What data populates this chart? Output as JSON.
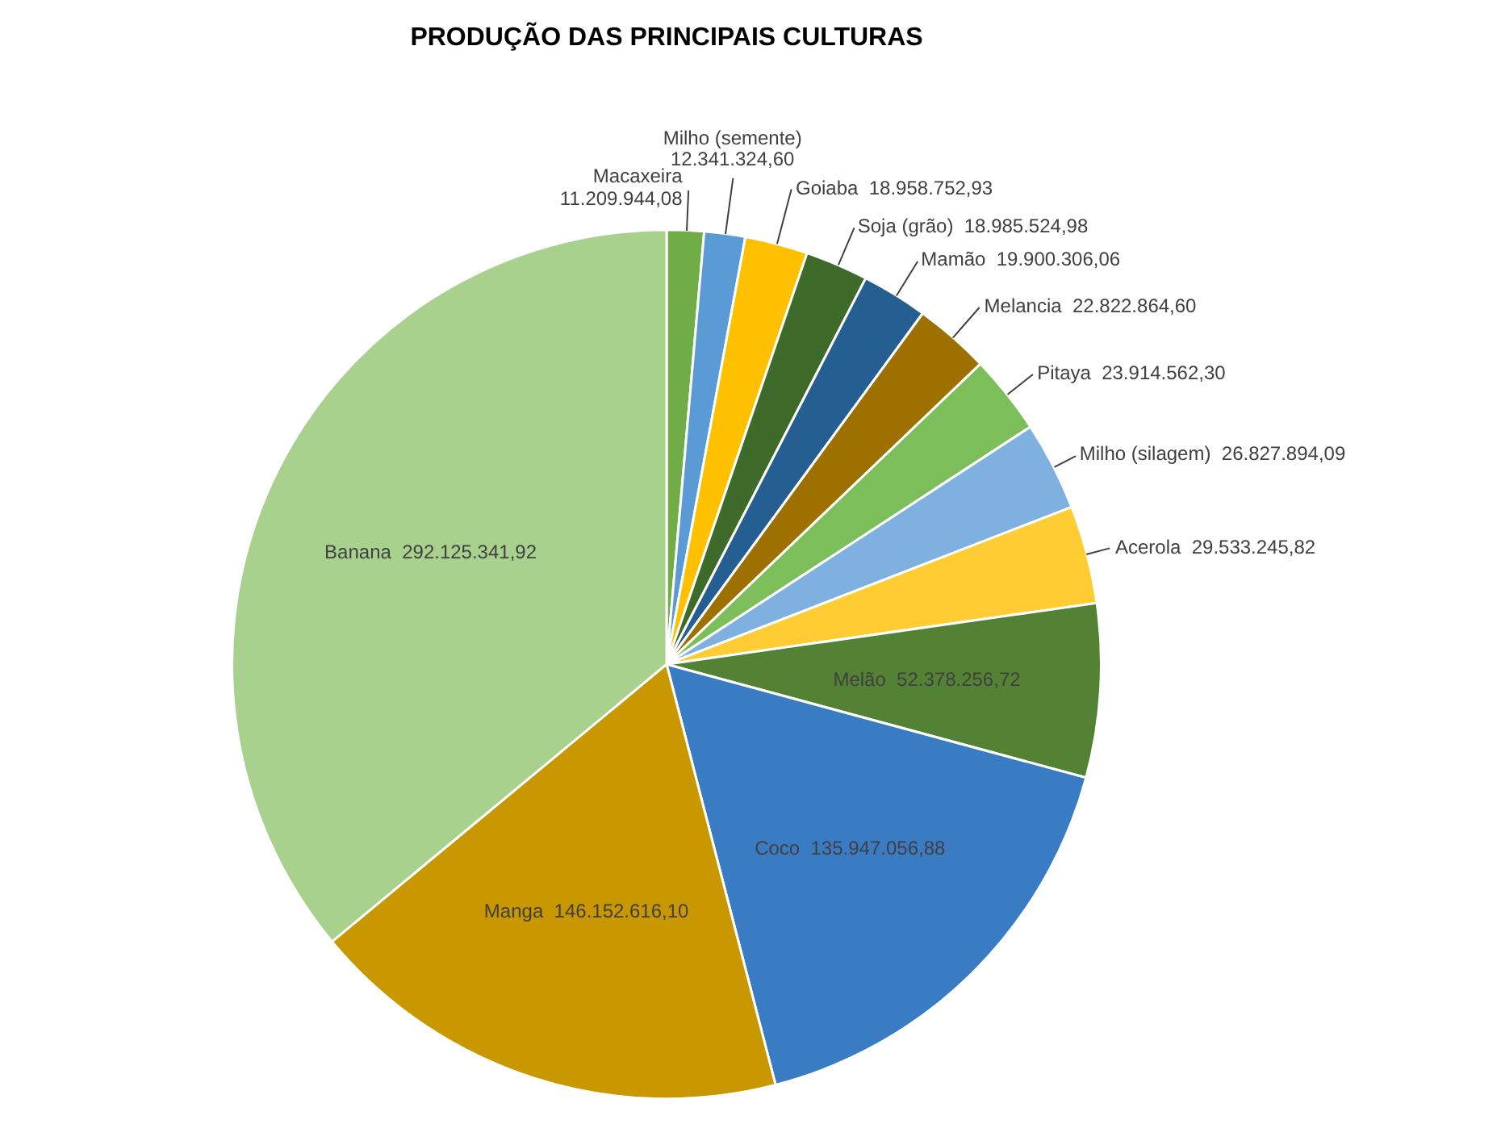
{
  "chart_data": {
    "type": "pie",
    "title": "PRODUÇÃO DAS PRINCIPAIS CULTURAS",
    "categories": [
      "Macaxeira",
      "Milho (semente)",
      "Goiaba",
      "Soja (grão)",
      "Mamão",
      "Melancia",
      "Pitaya",
      "Milho (silagem)",
      "Acerola",
      "Melão",
      "Coco",
      "Manga",
      "Banana"
    ],
    "values": [
      11209944.08,
      12341324.6,
      18958752.93,
      18985524.98,
      19900306.06,
      22822864.6,
      23914562.3,
      26827894.09,
      29533245.82,
      52378256.72,
      135947056.88,
      146152616.1,
      292125341.92
    ],
    "value_labels": [
      "11.209.944,08",
      "12.341.324,60",
      "18.958.752,93",
      "18.985.524,98",
      "19.900.306,06",
      "22.822.864,60",
      "23.914.562,30",
      "26.827.894,09",
      "29.533.245,82",
      "52.378.256,72",
      "135.947.056,88",
      "146.152.616,10",
      "292.125.341,92"
    ],
    "colors": [
      "#70ad47",
      "#5b9bd5",
      "#ffc000",
      "#3f6b2a",
      "#255e91",
      "#9e7000",
      "#7cbf5a",
      "#7eb0e0",
      "#ffcd33",
      "#548235",
      "#3a7cc4",
      "#c99700",
      "#a9d18e"
    ],
    "legend": false
  }
}
